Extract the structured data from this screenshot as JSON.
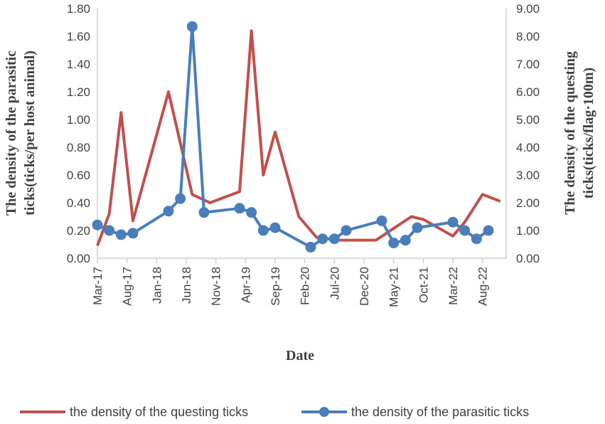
{
  "chart_data": {
    "type": "line",
    "xlabel": "Date",
    "ylabel_left": [
      "The density of the parasitic",
      "ticks(ticks/per host animal)"
    ],
    "ylabel_right": [
      "The density of the questing",
      "ticks(ticks/flag·100m)"
    ],
    "x_tick_labels": [
      "Mar-17",
      "Aug-17",
      "Jan-18",
      "Jun-18",
      "Nov-18",
      "Apr-19",
      "Sep-19",
      "Feb-20",
      "Jul-20",
      "Dec-20",
      "May-21",
      "Oct-21",
      "Mar-22",
      "Aug-22"
    ],
    "y_left": {
      "min": 0,
      "max": 1.8,
      "step": 0.2,
      "tick_labels": [
        "0.00",
        "0.20",
        "0.40",
        "0.60",
        "0.80",
        "1.00",
        "1.20",
        "1.40",
        "1.60",
        "1.80"
      ]
    },
    "y_right": {
      "min": 0,
      "max": 9,
      "step": 1,
      "tick_labels": [
        "0.00",
        "1.00",
        "2.00",
        "3.00",
        "4.00",
        "5.00",
        "6.00",
        "7.00",
        "8.00",
        "9.00"
      ]
    },
    "legend_position": "bottom",
    "series": [
      {
        "name": "the density of the questing ticks",
        "axis": "right",
        "color": "#c0504d",
        "marker": "none",
        "points": [
          {
            "x": "2017-03",
            "y": 0.45
          },
          {
            "x": "2017-05",
            "y": 1.6
          },
          {
            "x": "2017-07",
            "y": 5.25
          },
          {
            "x": "2017-09",
            "y": 1.35
          },
          {
            "x": "2018-03",
            "y": 6.0
          },
          {
            "x": "2018-07",
            "y": 2.3
          },
          {
            "x": "2018-10",
            "y": 2.0
          },
          {
            "x": "2019-03",
            "y": 2.4
          },
          {
            "x": "2019-05",
            "y": 8.2
          },
          {
            "x": "2019-07",
            "y": 3.0
          },
          {
            "x": "2019-09",
            "y": 4.55
          },
          {
            "x": "2020-01",
            "y": 1.5
          },
          {
            "x": "2020-04",
            "y": 0.75
          },
          {
            "x": "2020-08",
            "y": 0.65
          },
          {
            "x": "2021-02",
            "y": 0.65
          },
          {
            "x": "2021-08",
            "y": 1.5
          },
          {
            "x": "2021-10",
            "y": 1.4
          },
          {
            "x": "2022-03",
            "y": 0.8
          },
          {
            "x": "2022-05",
            "y": 1.3
          },
          {
            "x": "2022-08",
            "y": 2.3
          },
          {
            "x": "2022-11",
            "y": 2.05
          }
        ]
      },
      {
        "name": "the density of the parasitic ticks",
        "axis": "left",
        "color": "#4a7ebb",
        "marker": "circle",
        "points": [
          {
            "x": "2017-03",
            "y": 0.24
          },
          {
            "x": "2017-05",
            "y": 0.2
          },
          {
            "x": "2017-07",
            "y": 0.17
          },
          {
            "x": "2017-09",
            "y": 0.18
          },
          {
            "x": "2018-03",
            "y": 0.34
          },
          {
            "x": "2018-05",
            "y": 0.43
          },
          {
            "x": "2018-07",
            "y": 1.67
          },
          {
            "x": "2018-09",
            "y": 0.33
          },
          {
            "x": "2019-03",
            "y": 0.36
          },
          {
            "x": "2019-05",
            "y": 0.33
          },
          {
            "x": "2019-07",
            "y": 0.2
          },
          {
            "x": "2019-09",
            "y": 0.22
          },
          {
            "x": "2020-03",
            "y": 0.08
          },
          {
            "x": "2020-05",
            "y": 0.14
          },
          {
            "x": "2020-07",
            "y": 0.14
          },
          {
            "x": "2020-09",
            "y": 0.2
          },
          {
            "x": "2021-03",
            "y": 0.27
          },
          {
            "x": "2021-05",
            "y": 0.11
          },
          {
            "x": "2021-07",
            "y": 0.13
          },
          {
            "x": "2021-09",
            "y": 0.22
          },
          {
            "x": "2022-03",
            "y": 0.26
          },
          {
            "x": "2022-05",
            "y": 0.2
          },
          {
            "x": "2022-07",
            "y": 0.14
          },
          {
            "x": "2022-09",
            "y": 0.2
          }
        ]
      }
    ]
  }
}
